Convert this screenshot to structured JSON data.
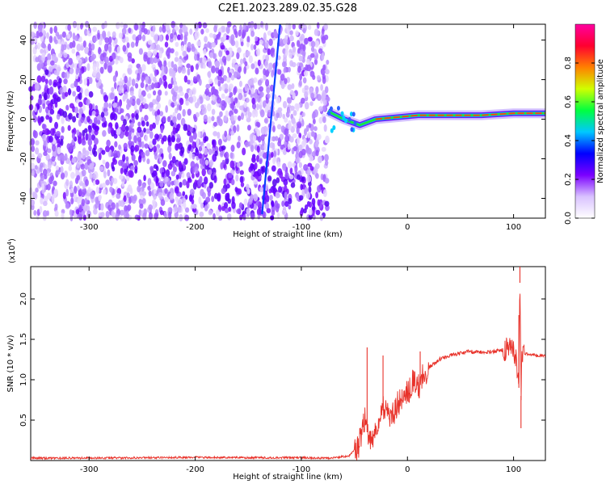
{
  "title": "C2E1.2023.289.02.35.G28",
  "chart_data": [
    {
      "type": "heatmap",
      "title": "C2E1.2023.289.02.35.G28",
      "xlabel": "Height of straight line (km)",
      "ylabel": "Frequency (Hz)",
      "xlim": [
        -355,
        130
      ],
      "ylim": [
        -50,
        48
      ],
      "x_ticks": [
        -300,
        -200,
        -100,
        0,
        100
      ],
      "y_ticks": [
        -40,
        -20,
        0,
        20,
        40
      ],
      "grid": false,
      "colorbar": {
        "label": "Normalized spectral amplitude",
        "range": [
          0.0,
          1.0
        ],
        "ticks": [
          0.0,
          0.2,
          0.4,
          0.6,
          0.8
        ],
        "colors": [
          "#ffffff",
          "#d9c2ff",
          "#7b00ff",
          "#0000ff",
          "#00c8ff",
          "#00ff40",
          "#d0ff00",
          "#ff8000",
          "#ff0030",
          "#ff00a0"
        ]
      },
      "features": {
        "noise_region_x": [
          -355,
          -75
        ],
        "signal_line": {
          "x": [
            -75,
            -60,
            -45,
            -30,
            -10,
            10,
            40,
            70,
            100,
            130
          ],
          "y": [
            4,
            0,
            -3,
            0,
            1,
            2,
            2,
            2,
            3,
            3
          ]
        },
        "streak": {
          "x": [
            -137,
            -120
          ],
          "y": [
            -48,
            48
          ]
        }
      }
    },
    {
      "type": "line",
      "xlabel": "Height of straight line (km)",
      "ylabel": "SNR (10 * v/v)",
      "y_multiplier": "(x10^4)",
      "xlim": [
        -355,
        130
      ],
      "ylim": [
        0,
        24000
      ],
      "x_ticks": [
        -300,
        -200,
        -100,
        0,
        100
      ],
      "y_ticks": [
        5000,
        10000,
        15000,
        20000
      ],
      "y_tick_labels": [
        "0.5",
        "1.0",
        "1.5",
        "2.0"
      ],
      "grid": false,
      "series": [
        {
          "color": "#e8322a",
          "x": [
            -355,
            -300,
            -250,
            -200,
            -150,
            -100,
            -70,
            -55,
            -48,
            -44,
            -42,
            -40,
            -38,
            -35,
            -30,
            -25,
            -20,
            -15,
            -10,
            -5,
            0,
            5,
            10,
            15,
            20,
            30,
            40,
            50,
            60,
            70,
            80,
            90,
            95,
            100,
            103,
            105,
            106,
            107,
            108,
            110,
            115,
            120,
            130
          ],
          "y": [
            300,
            300,
            350,
            400,
            350,
            350,
            300,
            600,
            1500,
            2500,
            4000,
            5000,
            3500,
            2500,
            4000,
            6000,
            6500,
            5500,
            7000,
            7500,
            8500,
            9500,
            9000,
            10500,
            11500,
            12500,
            13000,
            13300,
            13500,
            13400,
            13500,
            13600,
            14000,
            13500,
            12000,
            9000,
            22000,
            8000,
            13500,
            13200,
            13200,
            13000,
            12900
          ]
        }
      ],
      "spikes": [
        {
          "x": -38,
          "y": 14000
        },
        {
          "x": -23,
          "y": 13000
        },
        {
          "x": 12,
          "y": 13500
        },
        {
          "x": 105,
          "y": 18000
        },
        {
          "x": 106,
          "y": 24000
        },
        {
          "x": 107,
          "y": 4000
        }
      ]
    }
  ]
}
